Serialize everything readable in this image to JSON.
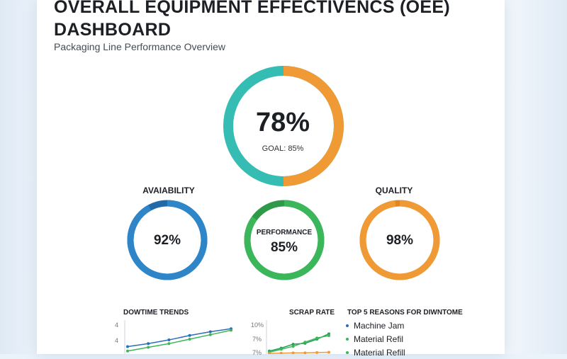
{
  "header": {
    "title": "OVERALL EQUIPMENT EFFECTIVENCS (OEE) DASHBOARD",
    "subtitle": "Packaging Line Performance Overview"
  },
  "oee": {
    "value": "78%",
    "fraction": 0.78,
    "goal_label": "GOAL: 85%",
    "colors": {
      "primary": "#f09a35",
      "secondary": "#35bdb3"
    }
  },
  "metrics": [
    {
      "label": "AVAIABILITY",
      "value": "92%",
      "fraction": 0.92,
      "color": "#2e86c9",
      "color_dark": "#2169a8"
    },
    {
      "label": "PERFORMANCE",
      "value": "85%",
      "fraction": 0.85,
      "color": "#3bb65a",
      "color_dark": "#2e9a49"
    },
    {
      "label": "QUALITY",
      "value": "98%",
      "fraction": 0.98,
      "color": "#f09a35",
      "color_dark": "#e0861f"
    }
  ],
  "downtime": {
    "title": "DOWTIME TRENDS",
    "ticks": [
      "4",
      "4"
    ],
    "chart_data": {
      "type": "line",
      "series": [
        {
          "values": [
            1.0,
            1.4,
            1.9,
            2.5,
            3.0,
            3.4
          ],
          "color": "#2a6fb8"
        },
        {
          "values": [
            0.4,
            0.9,
            1.4,
            2.0,
            2.6,
            3.2
          ],
          "color": "#3bb65a"
        }
      ],
      "ylim": [
        0,
        4
      ]
    }
  },
  "scrap": {
    "title": "SCRAP RATE",
    "ticks": [
      "10%",
      "7%",
      "7%"
    ],
    "chart_data": {
      "type": "line",
      "series": [
        {
          "values": [
            1.0,
            2.0,
            3.3,
            3.6,
            5.0,
            6.8
          ],
          "color": "#2a9d5a"
        },
        {
          "values": [
            0.6,
            1.6,
            2.6,
            4.0,
            5.4,
            6.2
          ],
          "color": "#3bb65a"
        },
        {
          "values": [
            0.2,
            0.3,
            0.4,
            0.4,
            0.5,
            0.6
          ],
          "color": "#f09a35"
        }
      ],
      "ylim": [
        0,
        10
      ]
    }
  },
  "reasons": {
    "title": "TOP 5 REASONS FOR DIWNTOME",
    "items": [
      {
        "label": "Machine Jam",
        "color": "#2a6fb8"
      },
      {
        "label": "Material Refil",
        "color": "#3bb65a"
      },
      {
        "label": "Material Refill",
        "color": "#3bb65a"
      }
    ]
  }
}
